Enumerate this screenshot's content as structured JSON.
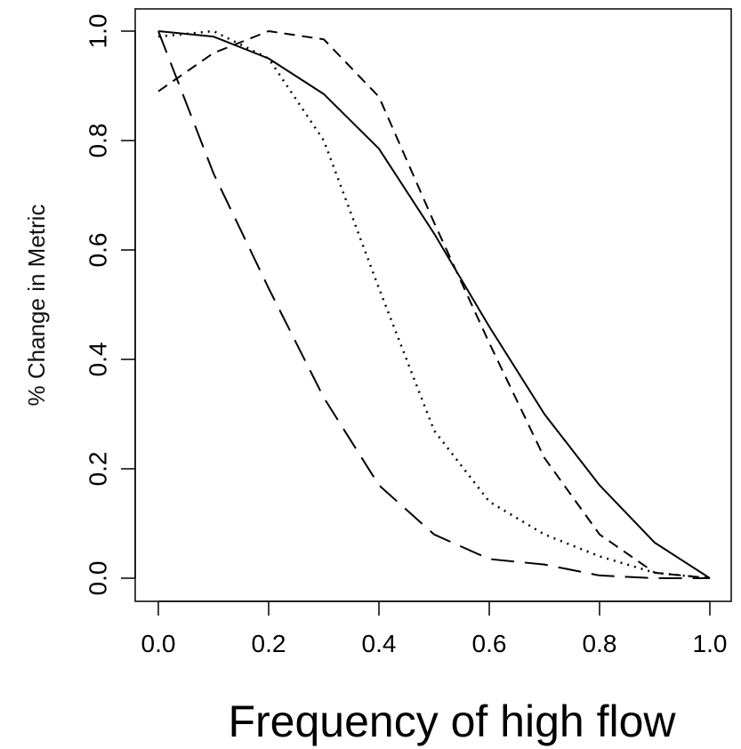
{
  "chart_data": {
    "type": "line",
    "title": "",
    "xlabel": "Frequency of high flow",
    "ylabel": "% Change in Metric",
    "xlim": [
      0.0,
      1.0
    ],
    "ylim": [
      0.0,
      1.0
    ],
    "xticks": [
      "0.0",
      "0.2",
      "0.4",
      "0.6",
      "0.8",
      "1.0"
    ],
    "yticks": [
      "0.0",
      "0.2",
      "0.4",
      "0.6",
      "0.8",
      "1.0"
    ],
    "grid": false,
    "legend": "none",
    "series": [
      {
        "style": "solid",
        "x": [
          0.0,
          0.1,
          0.2,
          0.3,
          0.4,
          0.5,
          0.6,
          0.7,
          0.8,
          0.9,
          1.0
        ],
        "y": [
          1.0,
          0.99,
          0.95,
          0.885,
          0.785,
          0.63,
          0.46,
          0.3,
          0.17,
          0.065,
          0.0
        ]
      },
      {
        "style": "dotted",
        "x": [
          0.0,
          0.1,
          0.2,
          0.3,
          0.4,
          0.5,
          0.6,
          0.7,
          0.8,
          0.9,
          1.0
        ],
        "y": [
          0.99,
          1.0,
          0.95,
          0.8,
          0.53,
          0.27,
          0.14,
          0.08,
          0.04,
          0.01,
          0.0
        ]
      },
      {
        "style": "dashed",
        "x": [
          0.0,
          0.1,
          0.2,
          0.3,
          0.4,
          0.5,
          0.6,
          0.7,
          0.8,
          0.9,
          1.0
        ],
        "y": [
          0.89,
          0.96,
          1.0,
          0.985,
          0.88,
          0.65,
          0.43,
          0.22,
          0.08,
          0.01,
          0.0
        ]
      },
      {
        "style": "longdash",
        "x": [
          0.0,
          0.1,
          0.2,
          0.3,
          0.4,
          0.5,
          0.6,
          0.7,
          0.8,
          0.9,
          1.0
        ],
        "y": [
          1.0,
          0.74,
          0.53,
          0.33,
          0.17,
          0.08,
          0.035,
          0.025,
          0.005,
          0.0,
          0.0
        ]
      }
    ]
  }
}
